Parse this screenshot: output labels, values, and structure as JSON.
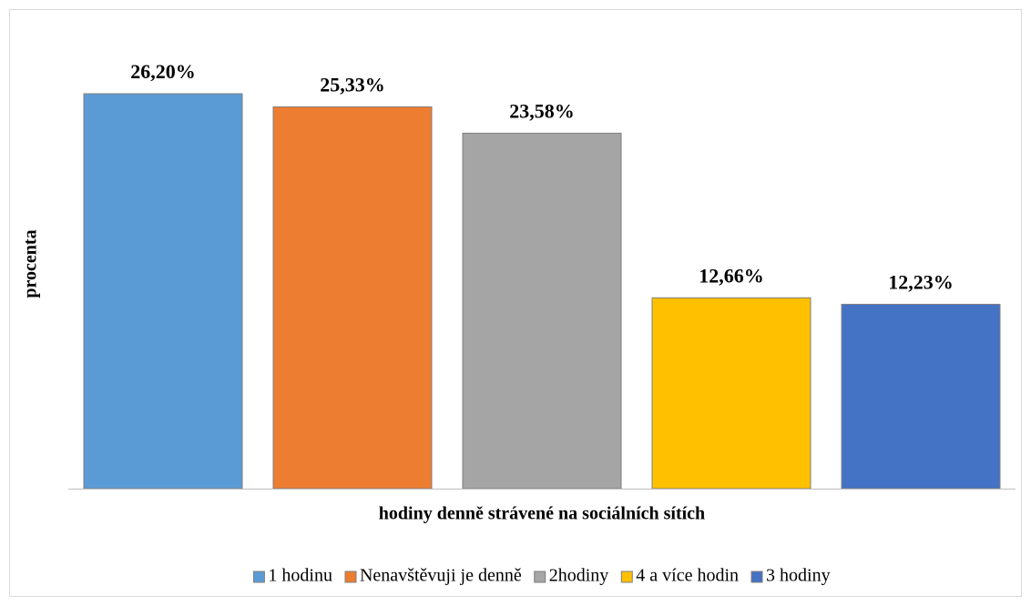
{
  "chart_data": {
    "type": "bar",
    "x_label": "hodiny denně strávené na sociálních sítích",
    "y_label": "procenta",
    "series": [
      {
        "name": "1 hodinu",
        "color": "#5b9bd5",
        "values": [
          26.2
        ],
        "value_labels": [
          "26,20%"
        ]
      },
      {
        "name": "Nenavštěvuji je denně",
        "color": "#ed7d31",
        "values": [
          25.33
        ],
        "value_labels": [
          "25,33%"
        ]
      },
      {
        "name": "2hodiny",
        "color": "#a5a5a5",
        "values": [
          23.58
        ],
        "value_labels": [
          "23,58%"
        ]
      },
      {
        "name": "4 a více hodin",
        "color": "#ffc000",
        "values": [
          12.66
        ],
        "value_labels": [
          "12,66%"
        ]
      },
      {
        "name": "3 hodiny",
        "color": "#4472c4",
        "values": [
          12.23
        ],
        "value_labels": [
          "12,23%"
        ]
      }
    ],
    "legend": "bottom"
  }
}
